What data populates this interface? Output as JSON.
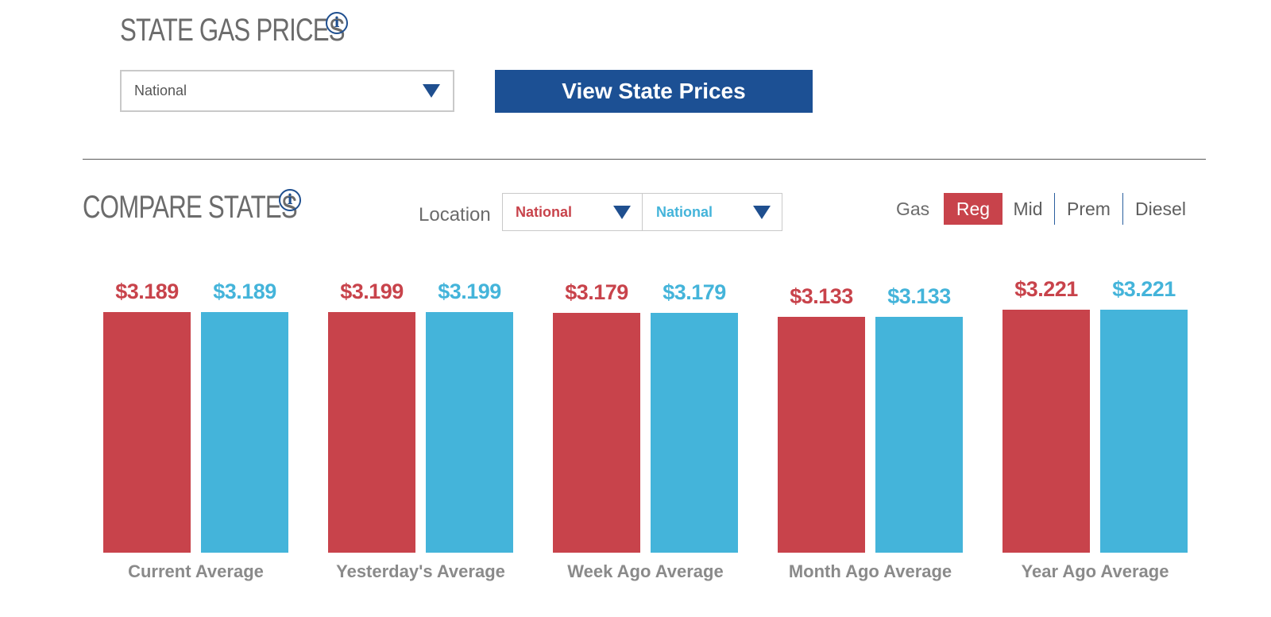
{
  "state_prices": {
    "title": "STATE GAS PRICES",
    "select_value": "National",
    "button_label": "View State Prices"
  },
  "compare": {
    "title": "COMPARE STATES",
    "location_label": "Location",
    "location_a": "National",
    "location_b": "National",
    "gas_label": "Gas",
    "gas_options": [
      "Reg",
      "Mid",
      "Prem",
      "Diesel"
    ],
    "gas_selected": "Reg"
  },
  "colors": {
    "series_a": "#c8434b",
    "series_b": "#44b4da",
    "accent": "#1c5094"
  },
  "chart_data": {
    "type": "bar",
    "categories": [
      "Current Average",
      "Yesterday's Average",
      "Week Ago Average",
      "Month Ago Average",
      "Year Ago Average"
    ],
    "series": [
      {
        "values": [
          3.189,
          3.199,
          3.179,
          3.133,
          3.221
        ],
        "labels": [
          "$3.189",
          "$3.199",
          "$3.179",
          "$3.133",
          "$3.221"
        ]
      },
      {
        "values": [
          3.189,
          3.199,
          3.179,
          3.133,
          3.221
        ],
        "labels": [
          "$3.189",
          "$3.199",
          "$3.179",
          "$3.133",
          "$3.221"
        ]
      }
    ]
  }
}
